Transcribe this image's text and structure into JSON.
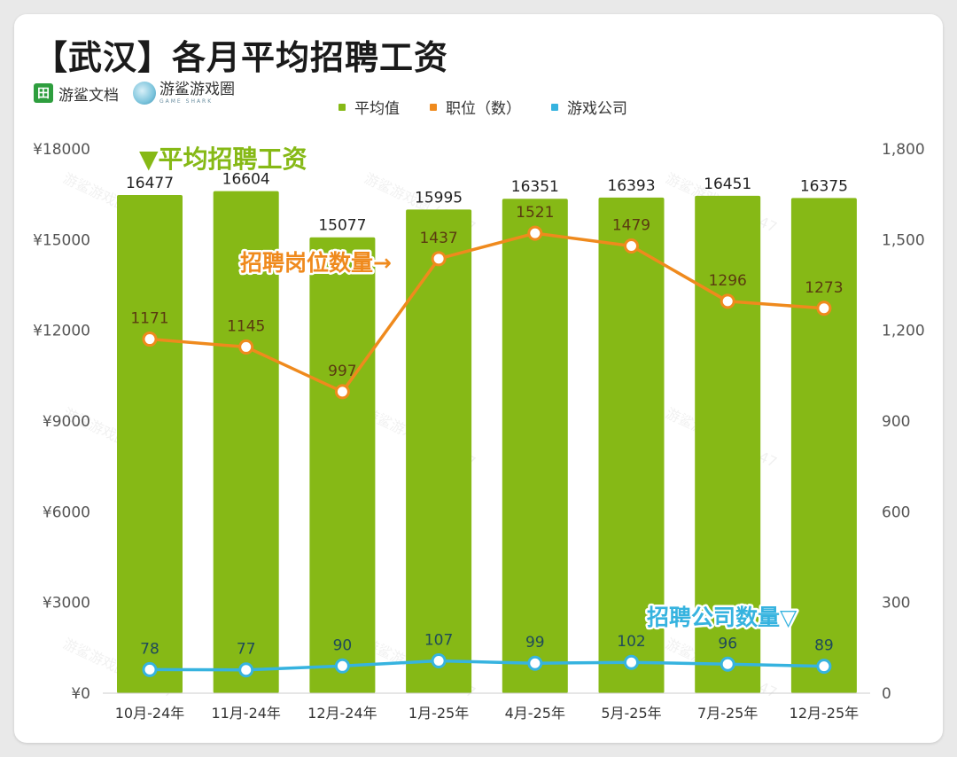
{
  "title": "【武汉】各月平均招聘工资",
  "brands": {
    "doc": {
      "icon_char": "田",
      "name": "游鲨文档"
    },
    "game": {
      "name": "游鲨游戏圈",
      "sub": "GAME SHARK"
    }
  },
  "watermark": "游鲨游戏圈 / 2147",
  "colors": {
    "bar": "#86b916",
    "jobs": "#ef8a1d",
    "companies": "#36b3df",
    "bar_label": "#222222"
  },
  "chart_data": {
    "type": "bar",
    "categories": [
      "10月-24年",
      "11月-24年",
      "12月-24年",
      "1月-25年",
      "4月-25年",
      "5月-25年",
      "7月-25年",
      "12月-25年"
    ],
    "series": [
      {
        "name": "平均值",
        "kind": "bar",
        "axis": "left",
        "values": [
          16477,
          16604,
          15077,
          15995,
          16351,
          16393,
          16451,
          16375
        ]
      },
      {
        "name": "职位（数）",
        "kind": "line",
        "axis": "right",
        "values": [
          1171,
          1145,
          997,
          1437,
          1521,
          1479,
          1296,
          1273
        ]
      },
      {
        "name": "游戏公司",
        "kind": "line",
        "axis": "right",
        "values": [
          78,
          77,
          90,
          107,
          99,
          102,
          96,
          89
        ]
      }
    ],
    "left_axis": {
      "min": 0,
      "max": 18000,
      "ticks": [
        0,
        3000,
        6000,
        9000,
        12000,
        15000,
        18000
      ],
      "tick_labels": [
        "¥0",
        "¥3000",
        "¥6000",
        "¥9000",
        "¥12000",
        "¥15000",
        "¥18000"
      ]
    },
    "right_axis": {
      "min": 0,
      "max": 1800,
      "ticks": [
        0,
        300,
        600,
        900,
        1200,
        1500,
        1800
      ],
      "tick_labels": [
        "0",
        "300",
        "600",
        "900",
        "1,200",
        "1,500",
        "1,800"
      ]
    },
    "annotations": {
      "salary": "▼平均招聘工资",
      "jobs": "招聘岗位数量→",
      "companies": "招聘公司数量▽"
    },
    "legend_position": "top-center"
  }
}
